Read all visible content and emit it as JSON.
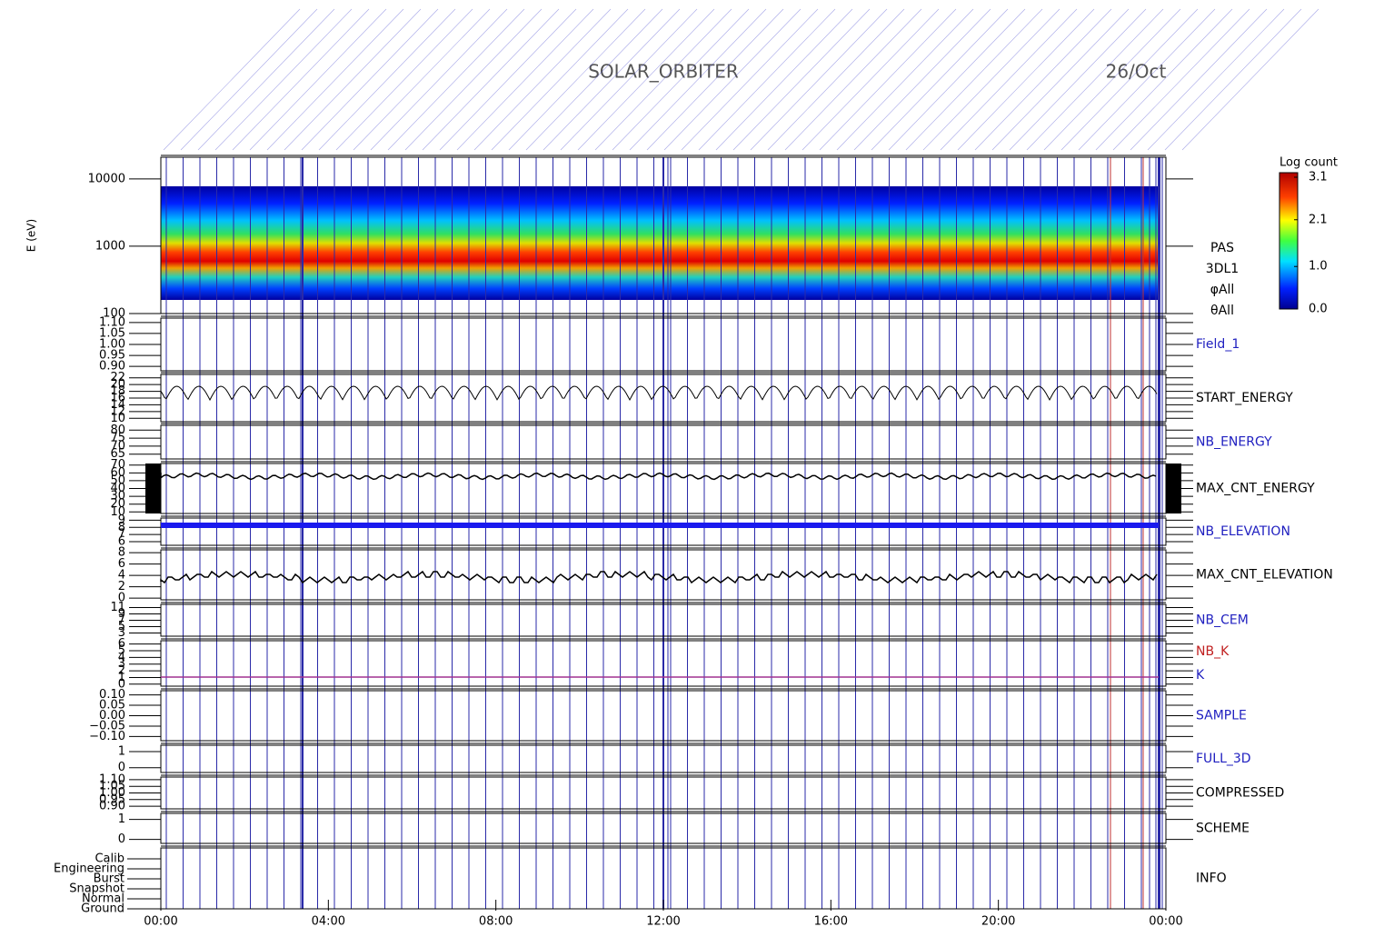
{
  "chart_data": {
    "type": "multipanel",
    "title": "SOLAR_ORBITER",
    "date": "26/Oct",
    "xticks": [
      "00:00",
      "04:00",
      "08:00",
      "12:00",
      "16:00",
      "20:00",
      "00:00"
    ],
    "colorbar": {
      "label": "Log count",
      "clim": [
        0,
        3.1
      ],
      "ticks": [
        {
          "value": 3.1,
          "label": "3.1"
        },
        {
          "value": 2.1,
          "label": "2.1"
        },
        {
          "value": 1.0,
          "label": "1.0"
        },
        {
          "value": 0,
          "label": "0.0"
        }
      ]
    },
    "panels": [
      {
        "ylabel": "E (eV)",
        "labels": [
          "PAS",
          "3DL1",
          "φAll",
          "θAll"
        ],
        "label_color": "#000000",
        "log": true,
        "ylim": [
          100,
          21000
        ],
        "yticks": [
          10000,
          1000,
          100
        ]
      },
      {
        "labels": [
          "Field_1"
        ],
        "label_color": "#2020c0",
        "ylim": [
          0.88,
          1.12
        ],
        "yticks": [
          {
            "value": 1.1,
            "label": "1.10"
          },
          {
            "value": 1.05,
            "label": "1.05"
          },
          {
            "value": 1.0,
            "label": "1.00"
          },
          {
            "value": 0.95,
            "label": "0.95"
          },
          {
            "value": 0.9,
            "label": "0.90"
          }
        ]
      },
      {
        "labels": [
          "START_ENERGY"
        ],
        "label_color": "#000000",
        "ylim": [
          9,
          23
        ],
        "yticks": [
          22,
          20,
          18,
          16,
          14,
          12,
          10
        ]
      },
      {
        "labels": [
          "NB_ENERGY"
        ],
        "label_color": "#2020c0",
        "ylim": [
          62,
          83
        ],
        "yticks": [
          80,
          75,
          70,
          65
        ]
      },
      {
        "labels": [
          "MAX_CNT_ENERGY"
        ],
        "label_color": "#000000",
        "ylim": [
          8,
          72
        ],
        "yticks": [
          70,
          60,
          50,
          40,
          30,
          20,
          10
        ]
      },
      {
        "labels": [
          "NB_ELEVATION"
        ],
        "label_color": "#2020c0",
        "ylim": [
          5.5,
          9.3
        ],
        "yticks": [
          9,
          8,
          7,
          6
        ]
      },
      {
        "labels": [
          "MAX_CNT_ELEVATION"
        ],
        "label_color": "#000000",
        "ylim": [
          -0.3,
          8.5
        ],
        "yticks": [
          8,
          6,
          4,
          2,
          0
        ]
      },
      {
        "labels": [
          "NB_CEM"
        ],
        "label_color": "#2020c0",
        "ylim": [
          2,
          12
        ],
        "yticks": [
          11,
          9,
          7,
          5,
          3
        ]
      },
      {
        "labels": [
          "NB_K",
          "K"
        ],
        "label_color": "#c02020",
        "ylim": [
          -0.3,
          6.5
        ],
        "yticks": [
          6,
          5,
          4,
          3,
          2,
          1,
          0
        ]
      },
      {
        "labels": [
          "SAMPLE"
        ],
        "label_color": "#2020c0",
        "ylim": [
          -0.12,
          0.12
        ],
        "yticks": [
          {
            "value": 0.1,
            "label": "0.10"
          },
          {
            "value": 0.05,
            "label": "0.05"
          },
          {
            "value": 0,
            "label": "0.00"
          },
          {
            "value": -0.05,
            "label": "−0.05"
          },
          {
            "value": -0.1,
            "label": "−0.10"
          }
        ]
      },
      {
        "labels": [
          "FULL_3D"
        ],
        "label_color": "#2020c0",
        "ylim": [
          -0.3,
          1.4
        ],
        "yticks": [
          1,
          0
        ]
      },
      {
        "labels": [
          "COMPRESSED"
        ],
        "label_color": "#000000",
        "ylim": [
          0.88,
          1.12
        ],
        "yticks": [
          {
            "value": 1.1,
            "label": "1.10"
          },
          {
            "value": 1.05,
            "label": "1.05"
          },
          {
            "value": 1.0,
            "label": "1.00"
          },
          {
            "value": 0.95,
            "label": "0.95"
          },
          {
            "value": 0.9,
            "label": "0.90"
          }
        ]
      },
      {
        "labels": [
          "SCHEME"
        ],
        "label_color": "#000000",
        "ylim": [
          -0.2,
          1.3
        ],
        "yticks": [
          1,
          0
        ]
      },
      {
        "labels": [
          "INFO"
        ],
        "label_color": "#000000",
        "categories": [
          "Calib",
          "Engineering",
          "Burst",
          "Snapshot",
          "Normal",
          "Ground"
        ]
      }
    ]
  }
}
